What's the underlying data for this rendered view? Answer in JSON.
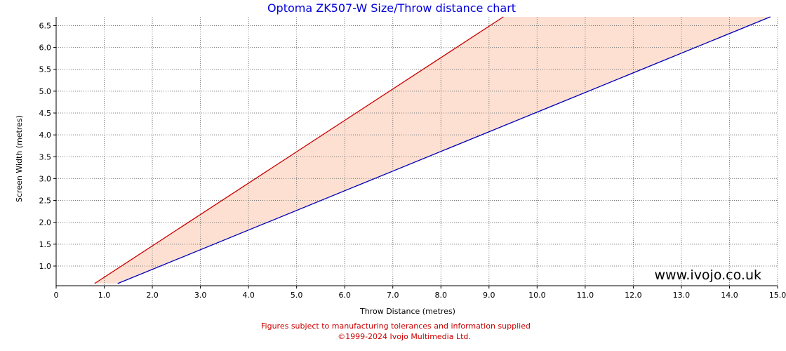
{
  "colors": {
    "title": "#0000dd",
    "upper_line": "#cc0000",
    "lower_line": "#0000bb",
    "band_fill": "#fde0d2",
    "footer": "#cc0000",
    "grid": "#777777"
  },
  "watermark": "www.ivojo.co.uk",
  "footer": {
    "line1": "Figures subject to manufacturing tolerances and information supplied",
    "line2": "©1999-2024 Ivojo Multimedia Ltd."
  },
  "chart_data": {
    "type": "area",
    "title": "Optoma ZK507-W Size/Throw distance chart",
    "xlabel": "Throw Distance (metres)",
    "ylabel": "Screen Width (metres)",
    "xlim": [
      0,
      15.0
    ],
    "ylim": [
      0.55,
      6.7
    ],
    "x_ticks": [
      "0",
      "1.0",
      "2.0",
      "3.0",
      "4.0",
      "5.0",
      "6.0",
      "7.0",
      "8.0",
      "9.0",
      "10.0",
      "11.0",
      "12.0",
      "13.0",
      "14.0",
      "15.0"
    ],
    "y_ticks": [
      "1.0",
      "1.5",
      "2.0",
      "2.5",
      "3.0",
      "3.5",
      "4.0",
      "4.5",
      "5.0",
      "5.5",
      "6.0",
      "6.5"
    ],
    "grid": true,
    "series": [
      {
        "role": "upper",
        "x": [
          0.8,
          9.3
        ],
        "y": [
          0.6,
          6.7
        ]
      },
      {
        "role": "lower",
        "x": [
          1.28,
          14.85
        ],
        "y": [
          0.6,
          6.7
        ]
      }
    ]
  }
}
